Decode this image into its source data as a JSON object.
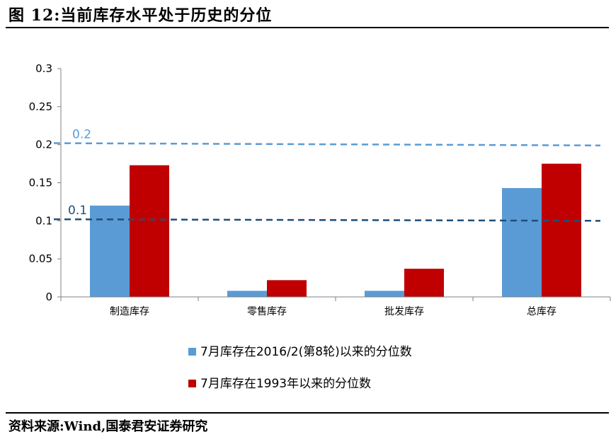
{
  "header": {
    "title": "图 12:当前库存水平处于历史的分位"
  },
  "footer": {
    "source": "资料来源:Wind,国泰君安证券研究"
  },
  "colors": {
    "series_blue": "#5B9BD5",
    "series_red": "#C00000",
    "ref_high": "#5B9BD5",
    "ref_low": "#1F4E79"
  },
  "chart_data": {
    "type": "bar",
    "categories": [
      "制造库存",
      "零售库存",
      "批发库存",
      "总库存"
    ],
    "series": [
      {
        "name": "7月库存在2016/2(第8轮)以来的分位数",
        "values": [
          0.12,
          0.008,
          0.008,
          0.143
        ]
      },
      {
        "name": "7月库存在1993年以来的分位数",
        "values": [
          0.173,
          0.022,
          0.037,
          0.175
        ]
      }
    ],
    "yticks": [
      "0",
      "0.05",
      "0.1",
      "0.15",
      "0.2",
      "0.25",
      "0.3"
    ],
    "ylim": [
      0,
      0.3
    ],
    "reference_lines": [
      {
        "label": "0.2",
        "y_start": 0.202,
        "y_end": 0.199
      },
      {
        "label": "0.1",
        "y_start": 0.102,
        "y_end": 0.1
      }
    ],
    "grid": false,
    "legend_position": "bottom"
  }
}
